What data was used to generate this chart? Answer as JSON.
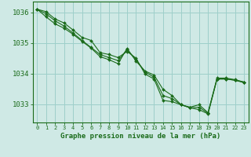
{
  "title": "Graphe pression niveau de la mer (hPa)",
  "bg_color": "#cfe9e5",
  "grid_color": "#9ecfca",
  "line_color": "#1a6b1a",
  "spine_color": "#1a6b1a",
  "xlim": [
    -0.5,
    23.5
  ],
  "ylim": [
    1032.4,
    1036.35
  ],
  "yticks": [
    1033,
    1034,
    1035,
    1036
  ],
  "xticks": [
    0,
    1,
    2,
    3,
    4,
    5,
    6,
    7,
    8,
    9,
    10,
    11,
    12,
    13,
    14,
    15,
    16,
    17,
    18,
    19,
    20,
    21,
    22,
    23
  ],
  "series1": [
    1036.1,
    1035.85,
    1035.62,
    1035.48,
    1035.28,
    1035.05,
    1034.83,
    1034.55,
    1034.45,
    1034.32,
    1034.82,
    1034.4,
    1034.08,
    1033.95,
    1033.48,
    1033.28,
    1032.98,
    1032.88,
    1032.82,
    1032.68,
    1033.82,
    1033.82,
    1033.78,
    1033.72
  ],
  "series2": [
    1036.1,
    1036.02,
    1035.78,
    1035.65,
    1035.42,
    1035.18,
    1035.08,
    1034.68,
    1034.62,
    1034.52,
    1034.72,
    1034.5,
    1033.98,
    1033.82,
    1033.12,
    1033.08,
    1032.98,
    1032.9,
    1032.98,
    1032.72,
    1033.85,
    1033.85,
    1033.8,
    1033.72
  ],
  "series3": [
    1036.1,
    1035.95,
    1035.72,
    1035.55,
    1035.32,
    1035.08,
    1034.85,
    1034.62,
    1034.52,
    1034.42,
    1034.78,
    1034.45,
    1034.05,
    1033.88,
    1033.28,
    1033.18,
    1032.98,
    1032.88,
    1032.9,
    1032.7,
    1033.82,
    1033.82,
    1033.78,
    1033.7
  ]
}
